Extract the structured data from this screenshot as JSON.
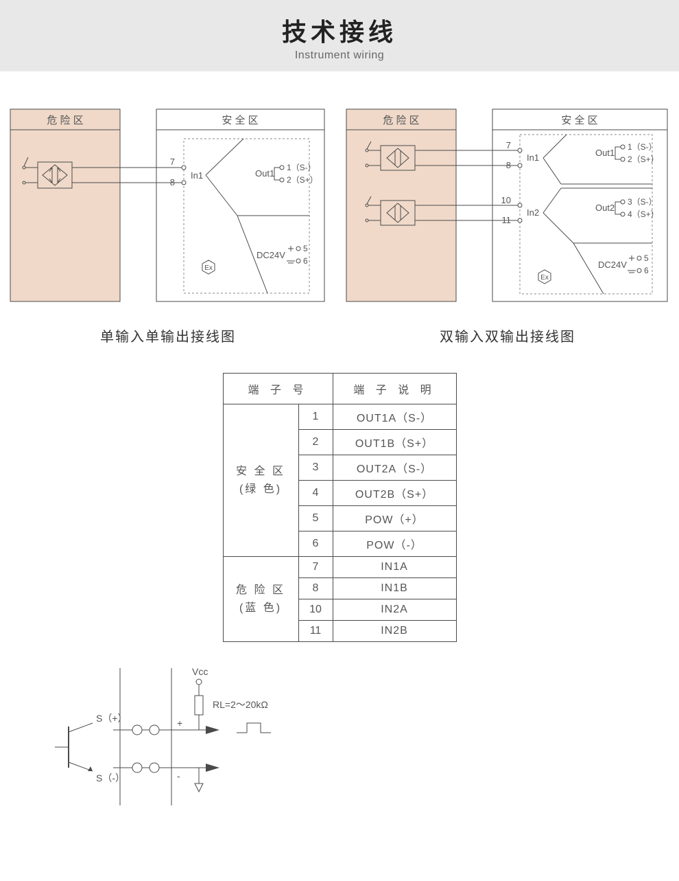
{
  "colors": {
    "band_bg": "#e8e8e8",
    "hazard_fill": "#f0d9c9",
    "box_stroke": "#4a4a4a",
    "wire": "#4a4a4a",
    "dashed": "#888888",
    "text": "#555555"
  },
  "header": {
    "title_cn": "技术接线",
    "title_en": "Instrument wiring"
  },
  "diagram_left": {
    "caption": "单输入单输出接线图",
    "hazard_label": "危 险 区",
    "safe_label": "安 全 区",
    "in_label": "In1",
    "term7": "7",
    "term8": "8",
    "out_label": "Out1",
    "out1_text": "1（S-）",
    "out2_text": "2（S+）",
    "power_label": "DC24V",
    "term5": "5",
    "term6": "6",
    "ex_mark": "Ex"
  },
  "diagram_right": {
    "caption": "双输入双输出接线图",
    "hazard_label": "危 险 区",
    "safe_label": "安 全 区",
    "in1_label": "In1",
    "in2_label": "In2",
    "term7": "7",
    "term8": "8",
    "term10": "10",
    "term11": "11",
    "out1_label": "Out1",
    "out2_label": "Out2",
    "out1_a": "1（S-）",
    "out1_b": "2（S+）",
    "out2_a": "3（S-）",
    "out2_b": "4（S+）",
    "power_label": "DC24V",
    "term5": "5",
    "term6": "6",
    "ex_mark": "Ex"
  },
  "terminal_table": {
    "header_num": "端 子 号",
    "header_desc": "端 子 说 明",
    "safe_zone_label": "安 全 区\n(绿 色)",
    "hazard_zone_label": "危 险 区\n(蓝 色)",
    "rows_safe": [
      {
        "n": "1",
        "d": "OUT1A（S-）"
      },
      {
        "n": "2",
        "d": "OUT1B（S+）"
      },
      {
        "n": "3",
        "d": "OUT2A（S-）"
      },
      {
        "n": "4",
        "d": "OUT2B（S+）"
      },
      {
        "n": "5",
        "d": "POW（+）"
      },
      {
        "n": "6",
        "d": "POW（-）"
      }
    ],
    "rows_hazard": [
      {
        "n": "7",
        "d": "IN1A"
      },
      {
        "n": "8",
        "d": "IN1B"
      },
      {
        "n": "10",
        "d": "IN2A"
      },
      {
        "n": "11",
        "d": "IN2B"
      }
    ]
  },
  "circuit": {
    "s_plus": "S（+）",
    "s_minus": "S（-）",
    "vcc": "Vcc",
    "rl": "RL=2～20kΩ",
    "plus": "+",
    "minus": "-"
  },
  "styling": {
    "hazard_box_stroke_width": 1,
    "safe_box_stroke_width": 1,
    "wire_stroke_width": 1.2,
    "header_title_fontsize": 36,
    "header_sub_fontsize": 16,
    "caption_fontsize": 20,
    "table_fontsize": 16,
    "diagram_label_fontsize": 13
  }
}
